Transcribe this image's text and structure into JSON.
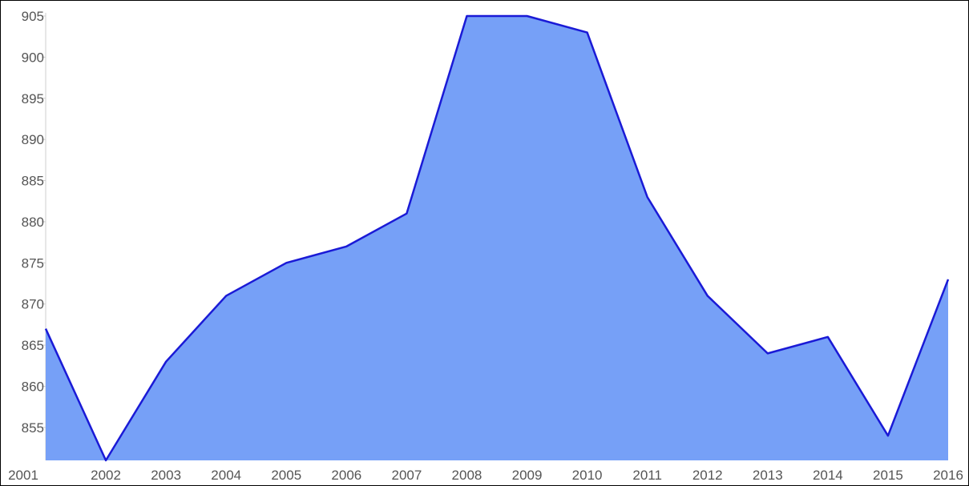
{
  "chart_data": {
    "type": "area",
    "title": "",
    "xlabel": "",
    "ylabel": "",
    "x": [
      "2001",
      "2002",
      "2003",
      "2004",
      "2005",
      "2006",
      "2007",
      "2008",
      "2009",
      "2010",
      "2011",
      "2012",
      "2013",
      "2014",
      "2015",
      "2016"
    ],
    "series": [
      {
        "values": [
          867,
          851,
          863,
          871,
          875,
          877,
          881,
          905,
          905,
          903,
          883,
          871,
          864,
          866,
          854,
          873
        ]
      }
    ],
    "ylim": [
      851,
      905
    ],
    "yticks": [
      855,
      860,
      865,
      870,
      875,
      880,
      885,
      890,
      895,
      900,
      905
    ],
    "grid": false,
    "legend": "none",
    "colors": {
      "fill": "#76a0f7",
      "line": "#1a1ad6",
      "tick_text": "#555555",
      "axis": "#cfcfcf"
    }
  }
}
